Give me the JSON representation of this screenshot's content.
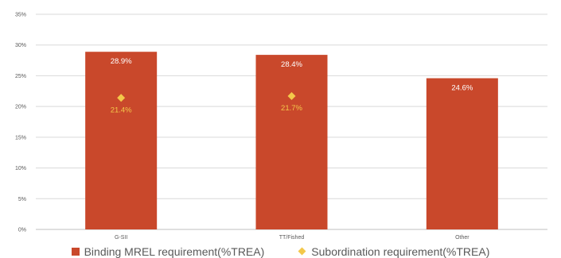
{
  "chart_data": {
    "type": "bar",
    "categories": [
      "G-SII",
      "TT/Fished",
      "Other"
    ],
    "ylim": [
      0,
      35
    ],
    "yticks": [
      "0%",
      "5%",
      "10%",
      "15%",
      "20%",
      "25%",
      "30%",
      "35%"
    ],
    "grid": true,
    "legend_position": "bottom",
    "series": [
      {
        "name": "Binding MREL requirement(%TREA)",
        "kind": "bar",
        "color": "#C9482B",
        "values": [
          28.9,
          28.4,
          24.6
        ],
        "labels": [
          "28.9%",
          "28.4%",
          "24.6%"
        ]
      },
      {
        "name": "Subordination requirement(%TREA)",
        "kind": "marker-diamond",
        "color": "#F3C84A",
        "values": [
          21.4,
          21.7,
          null
        ],
        "labels": [
          "21.4%",
          "21.7%",
          ""
        ]
      }
    ]
  }
}
